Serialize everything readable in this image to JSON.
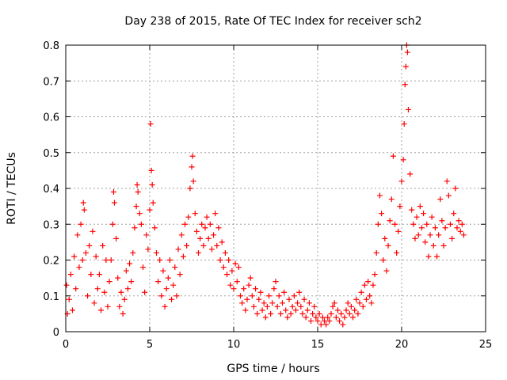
{
  "chart_data": {
    "type": "scatter",
    "title": "Day 238 of 2015, Rate Of TEC Index for receiver sch2",
    "xlabel": "GPS time / hours",
    "ylabel": "ROTI / TECUs",
    "xlim": [
      0,
      25
    ],
    "ylim": [
      0,
      0.8
    ],
    "xticks": [
      0,
      5,
      10,
      15,
      20,
      25
    ],
    "yticks": [
      0,
      0.1,
      0.2,
      0.3,
      0.4,
      0.5,
      0.6,
      0.7,
      0.8
    ],
    "xtick_labels": [
      "0",
      "5",
      "10",
      "15",
      "20",
      "25"
    ],
    "ytick_labels": [
      "0",
      "0.1",
      "0.2",
      "0.3",
      "0.4",
      "0.5",
      "0.6",
      "0.7",
      "0.8"
    ],
    "grid": true,
    "marker": "+",
    "marker_color": "#ff0000",
    "series": [
      {
        "points": [
          [
            0.05,
            0.13
          ],
          [
            0.1,
            0.05
          ],
          [
            0.2,
            0.09
          ],
          [
            0.3,
            0.16
          ],
          [
            0.4,
            0.06
          ],
          [
            0.5,
            0.21
          ],
          [
            0.6,
            0.12
          ],
          [
            0.7,
            0.27
          ],
          [
            0.8,
            0.18
          ],
          [
            0.9,
            0.3
          ],
          [
            1.0,
            0.2
          ],
          [
            1.05,
            0.36
          ],
          [
            1.1,
            0.34
          ],
          [
            1.2,
            0.22
          ],
          [
            1.3,
            0.1
          ],
          [
            1.4,
            0.24
          ],
          [
            1.5,
            0.16
          ],
          [
            1.6,
            0.28
          ],
          [
            1.7,
            0.08
          ],
          [
            1.8,
            0.21
          ],
          [
            1.9,
            0.12
          ],
          [
            2.0,
            0.16
          ],
          [
            2.1,
            0.06
          ],
          [
            2.2,
            0.24
          ],
          [
            2.3,
            0.11
          ],
          [
            2.4,
            0.2
          ],
          [
            2.5,
            0.07
          ],
          [
            2.6,
            0.14
          ],
          [
            2.7,
            0.2
          ],
          [
            2.8,
            0.3
          ],
          [
            2.85,
            0.39
          ],
          [
            2.9,
            0.36
          ],
          [
            3.0,
            0.26
          ],
          [
            3.1,
            0.15
          ],
          [
            3.2,
            0.07
          ],
          [
            3.3,
            0.11
          ],
          [
            3.4,
            0.05
          ],
          [
            3.5,
            0.09
          ],
          [
            3.6,
            0.17
          ],
          [
            3.7,
            0.12
          ],
          [
            3.8,
            0.19
          ],
          [
            3.9,
            0.14
          ],
          [
            4.0,
            0.22
          ],
          [
            4.1,
            0.29
          ],
          [
            4.2,
            0.35
          ],
          [
            4.25,
            0.41
          ],
          [
            4.3,
            0.39
          ],
          [
            4.4,
            0.33
          ],
          [
            4.5,
            0.3
          ],
          [
            4.6,
            0.18
          ],
          [
            4.7,
            0.11
          ],
          [
            4.8,
            0.27
          ],
          [
            4.9,
            0.23
          ],
          [
            5.0,
            0.34
          ],
          [
            5.05,
            0.58
          ],
          [
            5.1,
            0.45
          ],
          [
            5.15,
            0.41
          ],
          [
            5.2,
            0.36
          ],
          [
            5.3,
            0.29
          ],
          [
            5.4,
            0.22
          ],
          [
            5.5,
            0.14
          ],
          [
            5.6,
            0.2
          ],
          [
            5.7,
            0.1
          ],
          [
            5.8,
            0.17
          ],
          [
            5.9,
            0.07
          ],
          [
            6.0,
            0.12
          ],
          [
            6.1,
            0.15
          ],
          [
            6.2,
            0.2
          ],
          [
            6.3,
            0.09
          ],
          [
            6.4,
            0.13
          ],
          [
            6.5,
            0.18
          ],
          [
            6.6,
            0.1
          ],
          [
            6.7,
            0.23
          ],
          [
            6.8,
            0.16
          ],
          [
            6.9,
            0.27
          ],
          [
            7.0,
            0.21
          ],
          [
            7.1,
            0.3
          ],
          [
            7.2,
            0.24
          ],
          [
            7.3,
            0.32
          ],
          [
            7.4,
            0.4
          ],
          [
            7.5,
            0.46
          ],
          [
            7.55,
            0.49
          ],
          [
            7.6,
            0.42
          ],
          [
            7.7,
            0.33
          ],
          [
            7.8,
            0.28
          ],
          [
            7.9,
            0.22
          ],
          [
            8.0,
            0.26
          ],
          [
            8.1,
            0.3
          ],
          [
            8.2,
            0.24
          ],
          [
            8.3,
            0.29
          ],
          [
            8.4,
            0.32
          ],
          [
            8.5,
            0.26
          ],
          [
            8.6,
            0.3
          ],
          [
            8.7,
            0.23
          ],
          [
            8.8,
            0.27
          ],
          [
            8.9,
            0.33
          ],
          [
            9.0,
            0.24
          ],
          [
            9.1,
            0.29
          ],
          [
            9.2,
            0.2
          ],
          [
            9.3,
            0.25
          ],
          [
            9.4,
            0.18
          ],
          [
            9.5,
            0.22
          ],
          [
            9.6,
            0.16
          ],
          [
            9.7,
            0.2
          ],
          [
            9.8,
            0.13
          ],
          [
            9.9,
            0.17
          ],
          [
            10.0,
            0.12
          ],
          [
            10.1,
            0.19
          ],
          [
            10.2,
            0.14
          ],
          [
            10.3,
            0.18
          ],
          [
            10.4,
            0.1
          ],
          [
            10.5,
            0.08
          ],
          [
            10.6,
            0.12
          ],
          [
            10.7,
            0.06
          ],
          [
            10.8,
            0.09
          ],
          [
            10.9,
            0.13
          ],
          [
            11.0,
            0.15
          ],
          [
            11.1,
            0.1
          ],
          [
            11.2,
            0.07
          ],
          [
            11.3,
            0.12
          ],
          [
            11.4,
            0.05
          ],
          [
            11.5,
            0.09
          ],
          [
            11.6,
            0.11
          ],
          [
            11.7,
            0.06
          ],
          [
            11.8,
            0.08
          ],
          [
            11.9,
            0.04
          ],
          [
            12.0,
            0.07
          ],
          [
            12.1,
            0.1
          ],
          [
            12.2,
            0.05
          ],
          [
            12.3,
            0.08
          ],
          [
            12.4,
            0.12
          ],
          [
            12.5,
            0.14
          ],
          [
            12.6,
            0.07
          ],
          [
            12.7,
            0.1
          ],
          [
            12.8,
            0.05
          ],
          [
            12.9,
            0.08
          ],
          [
            13.0,
            0.11
          ],
          [
            13.1,
            0.06
          ],
          [
            13.2,
            0.04
          ],
          [
            13.3,
            0.09
          ],
          [
            13.4,
            0.05
          ],
          [
            13.5,
            0.07
          ],
          [
            13.6,
            0.1
          ],
          [
            13.7,
            0.06
          ],
          [
            13.8,
            0.08
          ],
          [
            13.9,
            0.11
          ],
          [
            14.0,
            0.07
          ],
          [
            14.1,
            0.05
          ],
          [
            14.2,
            0.09
          ],
          [
            14.3,
            0.04
          ],
          [
            14.4,
            0.06
          ],
          [
            14.5,
            0.08
          ],
          [
            14.6,
            0.03
          ],
          [
            14.7,
            0.05
          ],
          [
            14.8,
            0.07
          ],
          [
            14.9,
            0.04
          ],
          [
            15.0,
            0.03
          ],
          [
            15.1,
            0.05
          ],
          [
            15.2,
            0.02
          ],
          [
            15.3,
            0.04
          ],
          [
            15.4,
            0.03
          ],
          [
            15.5,
            0.02
          ],
          [
            15.6,
            0.04
          ],
          [
            15.7,
            0.03
          ],
          [
            15.8,
            0.05
          ],
          [
            15.9,
            0.07
          ],
          [
            16.0,
            0.08
          ],
          [
            16.1,
            0.04
          ],
          [
            16.2,
            0.06
          ],
          [
            16.3,
            0.03
          ],
          [
            16.4,
            0.05
          ],
          [
            16.5,
            0.02
          ],
          [
            16.6,
            0.04
          ],
          [
            16.7,
            0.06
          ],
          [
            16.8,
            0.08
          ],
          [
            16.9,
            0.05
          ],
          [
            17.0,
            0.07
          ],
          [
            17.1,
            0.04
          ],
          [
            17.2,
            0.06
          ],
          [
            17.3,
            0.09
          ],
          [
            17.4,
            0.05
          ],
          [
            17.5,
            0.08
          ],
          [
            17.6,
            0.11
          ],
          [
            17.7,
            0.07
          ],
          [
            17.8,
            0.13
          ],
          [
            17.9,
            0.09
          ],
          [
            18.0,
            0.14
          ],
          [
            18.1,
            0.1
          ],
          [
            18.2,
            0.08
          ],
          [
            18.3,
            0.13
          ],
          [
            18.4,
            0.16
          ],
          [
            18.5,
            0.22
          ],
          [
            18.6,
            0.3
          ],
          [
            18.7,
            0.38
          ],
          [
            18.8,
            0.33
          ],
          [
            18.9,
            0.2
          ],
          [
            19.0,
            0.26
          ],
          [
            19.1,
            0.17
          ],
          [
            19.2,
            0.24
          ],
          [
            19.3,
            0.31
          ],
          [
            19.4,
            0.37
          ],
          [
            19.5,
            0.49
          ],
          [
            19.6,
            0.3
          ],
          [
            19.7,
            0.22
          ],
          [
            19.8,
            0.28
          ],
          [
            19.9,
            0.35
          ],
          [
            20.0,
            0.42
          ],
          [
            20.1,
            0.48
          ],
          [
            20.15,
            0.58
          ],
          [
            20.2,
            0.69
          ],
          [
            20.25,
            0.74
          ],
          [
            20.3,
            0.8
          ],
          [
            20.35,
            0.78
          ],
          [
            20.4,
            0.62
          ],
          [
            20.5,
            0.44
          ],
          [
            20.6,
            0.34
          ],
          [
            20.7,
            0.3
          ],
          [
            20.8,
            0.26
          ],
          [
            20.9,
            0.32
          ],
          [
            21.0,
            0.27
          ],
          [
            21.1,
            0.35
          ],
          [
            21.2,
            0.29
          ],
          [
            21.3,
            0.33
          ],
          [
            21.4,
            0.25
          ],
          [
            21.5,
            0.3
          ],
          [
            21.6,
            0.21
          ],
          [
            21.7,
            0.27
          ],
          [
            21.8,
            0.32
          ],
          [
            21.9,
            0.24
          ],
          [
            22.0,
            0.29
          ],
          [
            22.1,
            0.21
          ],
          [
            22.2,
            0.27
          ],
          [
            22.3,
            0.37
          ],
          [
            22.4,
            0.31
          ],
          [
            22.5,
            0.24
          ],
          [
            22.6,
            0.29
          ],
          [
            22.7,
            0.42
          ],
          [
            22.8,
            0.38
          ],
          [
            22.9,
            0.3
          ],
          [
            23.0,
            0.26
          ],
          [
            23.1,
            0.33
          ],
          [
            23.2,
            0.4
          ],
          [
            23.3,
            0.29
          ],
          [
            23.4,
            0.31
          ],
          [
            23.5,
            0.28
          ],
          [
            23.6,
            0.3
          ],
          [
            23.7,
            0.27
          ]
        ]
      }
    ]
  }
}
